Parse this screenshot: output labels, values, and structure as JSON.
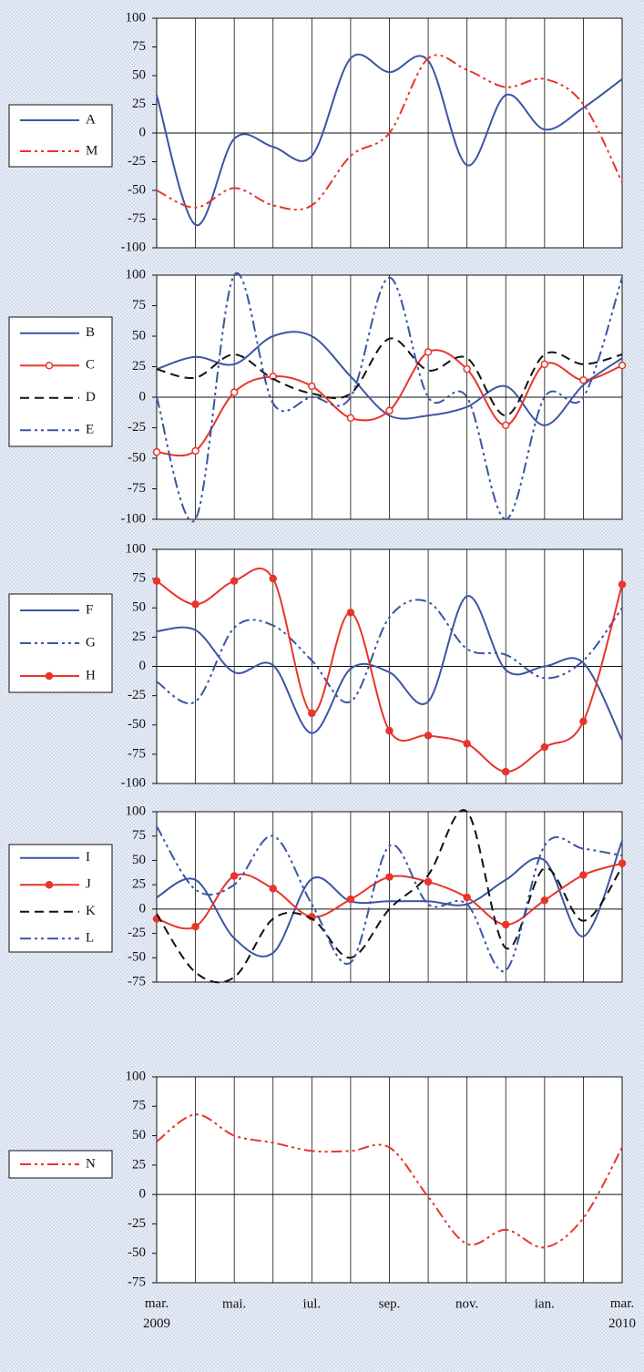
{
  "chart_data": [
    {
      "type": "line",
      "ylim": [
        -100,
        100
      ],
      "yticks": [
        100,
        75,
        50,
        25,
        0,
        -25,
        -50,
        -75,
        -100
      ],
      "xgrid": true,
      "series": [
        {
          "name": "A",
          "color": "#3a55a4",
          "line_style": "solid",
          "values": [
            33,
            -80,
            -5,
            -12,
            -20,
            65,
            53,
            63,
            -28,
            33,
            3,
            22,
            47
          ]
        },
        {
          "name": "M",
          "color": "#e8352b",
          "line_style": "dashdotdot",
          "values": [
            -50,
            -65,
            -48,
            -63,
            -63,
            -20,
            0,
            65,
            55,
            40,
            47,
            25,
            -43
          ]
        }
      ]
    },
    {
      "type": "line",
      "ylim": [
        -100,
        100
      ],
      "yticks": [
        100,
        75,
        50,
        25,
        0,
        -25,
        -50,
        -75,
        -100
      ],
      "xgrid": true,
      "series": [
        {
          "name": "B",
          "color": "#3a55a4",
          "line_style": "solid",
          "values": [
            23,
            33,
            27,
            50,
            50,
            17,
            -15,
            -15,
            -8,
            9,
            -23,
            10,
            32
          ]
        },
        {
          "name": "C",
          "color": "#e8352b",
          "line_style": "solid",
          "marker": "circle-open",
          "values": [
            -45,
            -44,
            4,
            17,
            9,
            -17,
            -11,
            37,
            23,
            -23,
            27,
            14,
            26
          ]
        },
        {
          "name": "D",
          "color": "#111111",
          "line_style": "dashed",
          "values": [
            23,
            16,
            35,
            15,
            3,
            3,
            48,
            22,
            32,
            -15,
            35,
            27,
            35
          ]
        },
        {
          "name": "E",
          "color": "#3a55a4",
          "line_style": "dashdotdot",
          "values": [
            0,
            -100,
            100,
            -5,
            0,
            0,
            98,
            0,
            0,
            -100,
            0,
            0,
            98
          ]
        }
      ]
    },
    {
      "type": "line",
      "ylim": [
        -100,
        100
      ],
      "yticks": [
        100,
        75,
        50,
        25,
        0,
        -25,
        -50,
        -75,
        -100
      ],
      "xgrid": true,
      "series": [
        {
          "name": "F",
          "color": "#3a55a4",
          "line_style": "solid",
          "values": [
            30,
            31,
            -5,
            1,
            -57,
            -2,
            -5,
            -30,
            60,
            -3,
            0,
            3,
            -63
          ]
        },
        {
          "name": "G",
          "color": "#3a55a4",
          "line_style": "dashdotdot",
          "values": [
            -13,
            -30,
            33,
            35,
            5,
            -30,
            42,
            55,
            15,
            10,
            -10,
            5,
            50
          ]
        },
        {
          "name": "H",
          "color": "#e8352b",
          "line_style": "solid",
          "marker": "circle-filled",
          "values": [
            73,
            53,
            73,
            75,
            -40,
            46,
            -55,
            -59,
            -66,
            -90,
            -69,
            -47,
            70
          ]
        }
      ]
    },
    {
      "type": "line",
      "ylim": [
        -75,
        100
      ],
      "yticks": [
        100,
        75,
        50,
        25,
        0,
        -25,
        -50,
        -75
      ],
      "xgrid": true,
      "series": [
        {
          "name": "I",
          "color": "#3a55a4",
          "line_style": "solid",
          "values": [
            12,
            30,
            -30,
            -45,
            31,
            8,
            8,
            8,
            5,
            30,
            50,
            -28,
            70
          ]
        },
        {
          "name": "J",
          "color": "#e8352b",
          "line_style": "solid",
          "marker": "circle-filled",
          "values": [
            -10,
            -18,
            34,
            21,
            -8,
            10,
            33,
            28,
            12,
            -16,
            9,
            35,
            47
          ]
        },
        {
          "name": "K",
          "color": "#111111",
          "line_style": "dashed",
          "values": [
            -5,
            -65,
            -70,
            -10,
            -10,
            -50,
            0,
            35,
            100,
            -40,
            42,
            -12,
            43
          ]
        },
        {
          "name": "L",
          "color": "#3a55a4",
          "line_style": "dashdotdot",
          "values": [
            85,
            20,
            25,
            75,
            5,
            -55,
            65,
            5,
            5,
            -63,
            65,
            62,
            55
          ]
        }
      ]
    },
    {
      "type": "line",
      "ylim": [
        -75,
        100
      ],
      "yticks": [
        100,
        75,
        50,
        25,
        0,
        -25,
        -50,
        -75
      ],
      "xgrid": true,
      "categories": [
        "mar. 2009",
        null,
        "mai.",
        null,
        "iul.",
        null,
        "sep.",
        null,
        "nov.",
        null,
        "ian.",
        null,
        "mar. 2010"
      ],
      "series": [
        {
          "name": "N",
          "color": "#e8352b",
          "line_style": "dashdotdot",
          "values": [
            45,
            68,
            50,
            44,
            37,
            37,
            40,
            -2,
            -42,
            -30,
            -45,
            -20,
            40
          ]
        }
      ]
    }
  ]
}
